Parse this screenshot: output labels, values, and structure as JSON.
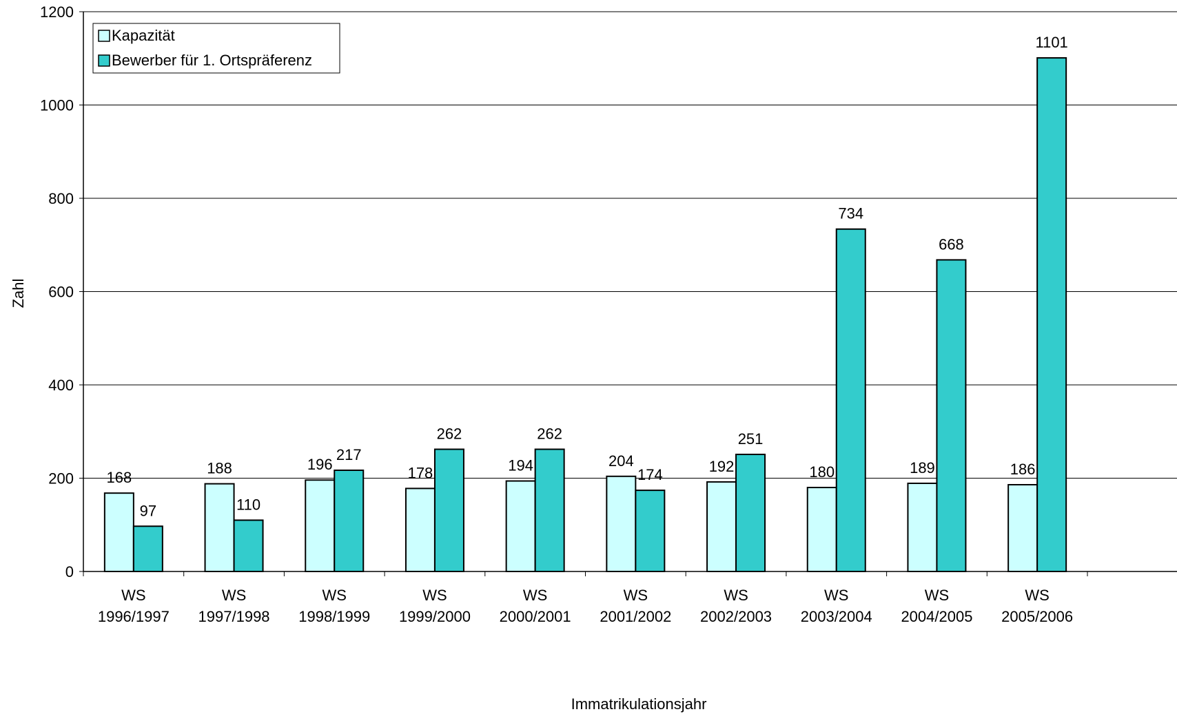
{
  "chart_data": {
    "type": "bar",
    "title": "",
    "xlabel": "Immatrikulationsjahr",
    "ylabel": "Zahl",
    "ylim": [
      0,
      1200
    ],
    "yticks": [
      0,
      200,
      400,
      600,
      800,
      1000,
      1200
    ],
    "grid": "horizontal",
    "legend_position": "top-left",
    "categories": [
      [
        "WS",
        "1996/1997"
      ],
      [
        "WS",
        "1997/1998"
      ],
      [
        "WS",
        "1998/1999"
      ],
      [
        "WS",
        "1999/2000"
      ],
      [
        "WS",
        "2000/2001"
      ],
      [
        "WS",
        "2001/2002"
      ],
      [
        "WS",
        "2002/2003"
      ],
      [
        "WS",
        "2003/2004"
      ],
      [
        "WS",
        "2004/2005"
      ],
      [
        "WS",
        "2005/2006"
      ]
    ],
    "series": [
      {
        "name": "Kapazität",
        "color": "#ccffff",
        "values": [
          168,
          188,
          196,
          178,
          194,
          204,
          192,
          180,
          189,
          186
        ]
      },
      {
        "name": "Bewerber für 1. Ortspräferenz",
        "color": "#33cccc",
        "values": [
          97,
          110,
          217,
          262,
          262,
          174,
          251,
          734,
          668,
          1101
        ]
      }
    ]
  }
}
